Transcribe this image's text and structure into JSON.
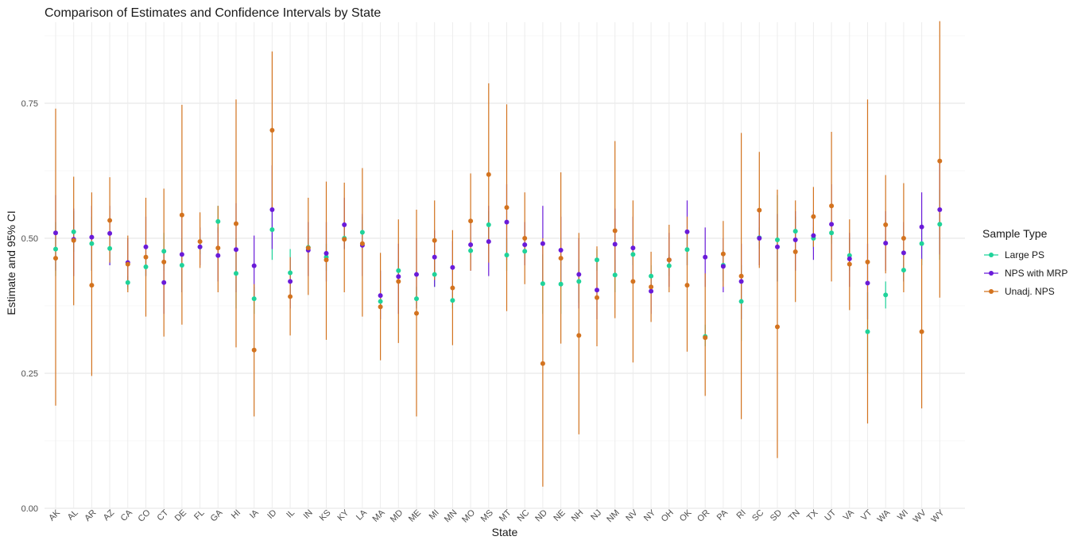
{
  "chart_data": {
    "type": "scatter",
    "title": "Comparison of Estimates and Confidence Intervals by State",
    "xlabel": "State",
    "ylabel": "Estimate and 95% CI",
    "ylim": [
      0,
      0.9
    ],
    "yticks": [
      0,
      0.25,
      0.5,
      0.75
    ],
    "ytick_labels": [
      "0.00",
      "0.25",
      "0.50",
      "0.75"
    ],
    "grid": true,
    "legend_position": "right",
    "legend_title": "Sample Type",
    "categories": [
      "AK",
      "AL",
      "AR",
      "AZ",
      "CA",
      "CO",
      "CT",
      "DE",
      "FL",
      "GA",
      "HI",
      "IA",
      "ID",
      "IL",
      "IN",
      "KS",
      "KY",
      "LA",
      "MA",
      "MD",
      "ME",
      "MI",
      "MN",
      "MO",
      "MS",
      "MT",
      "NC",
      "ND",
      "NE",
      "NH",
      "NJ",
      "NM",
      "NV",
      "NY",
      "OH",
      "OK",
      "OR",
      "PA",
      "RI",
      "SC",
      "SD",
      "TN",
      "TX",
      "UT",
      "VA",
      "VT",
      "WA",
      "WI",
      "WV",
      "WY"
    ],
    "series": [
      {
        "name": "Large PS",
        "color": "#1fd39a",
        "values": [
          0.48,
          0.512,
          0.49,
          0.481,
          0.418,
          0.447,
          0.476,
          0.45,
          0.484,
          0.531,
          0.435,
          0.388,
          0.516,
          0.436,
          0.483,
          0.465,
          0.5,
          0.511,
          0.383,
          0.44,
          0.388,
          0.433,
          0.385,
          0.477,
          0.525,
          0.469,
          0.476,
          0.416,
          0.415,
          0.42,
          0.46,
          0.432,
          0.47,
          0.43,
          0.449,
          0.479,
          0.318,
          0.45,
          0.383,
          0.501,
          0.497,
          0.513,
          0.5,
          0.51,
          0.468,
          0.327,
          0.395,
          0.441,
          0.49,
          0.526
        ],
        "lower": [
          0.43,
          0.475,
          0.44,
          0.45,
          0.405,
          0.43,
          0.44,
          0.4,
          0.47,
          0.51,
          0.37,
          0.36,
          0.46,
          0.39,
          0.47,
          0.44,
          0.48,
          0.48,
          0.37,
          0.42,
          0.37,
          0.41,
          0.37,
          0.46,
          0.5,
          0.44,
          0.46,
          0.36,
          0.36,
          0.38,
          0.44,
          0.4,
          0.45,
          0.41,
          0.43,
          0.45,
          0.3,
          0.42,
          0.31,
          0.48,
          0.42,
          0.49,
          0.48,
          0.49,
          0.44,
          0.25,
          0.37,
          0.42,
          0.45,
          0.46
        ],
        "upper": [
          0.53,
          0.55,
          0.54,
          0.51,
          0.43,
          0.46,
          0.51,
          0.5,
          0.5,
          0.56,
          0.5,
          0.41,
          0.56,
          0.48,
          0.5,
          0.49,
          0.52,
          0.54,
          0.39,
          0.46,
          0.41,
          0.46,
          0.4,
          0.49,
          0.55,
          0.5,
          0.49,
          0.47,
          0.47,
          0.46,
          0.48,
          0.46,
          0.49,
          0.45,
          0.47,
          0.51,
          0.34,
          0.48,
          0.45,
          0.52,
          0.58,
          0.54,
          0.52,
          0.53,
          0.5,
          0.4,
          0.42,
          0.46,
          0.53,
          0.59
        ]
      },
      {
        "name": "NPS with MRP",
        "color": "#6a1bd9",
        "values": [
          0.51,
          0.498,
          0.502,
          0.509,
          0.455,
          0.484,
          0.418,
          0.47,
          0.484,
          0.468,
          0.479,
          0.449,
          0.553,
          0.42,
          0.478,
          0.472,
          0.525,
          0.487,
          0.394,
          0.429,
          0.433,
          0.465,
          0.446,
          0.488,
          0.494,
          0.53,
          0.488,
          0.49,
          0.478,
          0.433,
          0.404,
          0.489,
          0.482,
          0.402,
          0.46,
          0.512,
          0.465,
          0.448,
          0.42,
          0.5,
          0.484,
          0.497,
          0.505,
          0.526,
          0.462,
          0.417,
          0.491,
          0.473,
          0.521,
          0.553
        ],
        "lower": [
          0.44,
          0.43,
          0.44,
          0.45,
          0.41,
          0.43,
          0.36,
          0.4,
          0.45,
          0.42,
          0.4,
          0.39,
          0.48,
          0.37,
          0.43,
          0.42,
          0.48,
          0.43,
          0.35,
          0.36,
          0.37,
          0.41,
          0.39,
          0.44,
          0.43,
          0.46,
          0.45,
          0.42,
          0.41,
          0.37,
          0.35,
          0.43,
          0.42,
          0.36,
          0.41,
          0.45,
          0.41,
          0.4,
          0.35,
          0.45,
          0.42,
          0.44,
          0.46,
          0.46,
          0.41,
          0.35,
          0.44,
          0.42,
          0.46,
          0.47
        ],
        "upper": [
          0.58,
          0.555,
          0.56,
          0.56,
          0.5,
          0.54,
          0.48,
          0.54,
          0.52,
          0.52,
          0.565,
          0.505,
          0.635,
          0.465,
          0.53,
          0.53,
          0.575,
          0.545,
          0.44,
          0.49,
          0.5,
          0.515,
          0.495,
          0.535,
          0.56,
          0.6,
          0.53,
          0.56,
          0.54,
          0.5,
          0.46,
          0.555,
          0.54,
          0.44,
          0.51,
          0.57,
          0.52,
          0.5,
          0.49,
          0.55,
          0.545,
          0.55,
          0.55,
          0.6,
          0.51,
          0.49,
          0.55,
          0.53,
          0.585,
          0.64
        ]
      },
      {
        "name": "Unadj. NPS",
        "color": "#d3731f",
        "values": [
          0.463,
          0.496,
          0.413,
          0.533,
          0.452,
          0.465,
          0.456,
          0.543,
          0.494,
          0.482,
          0.527,
          0.293,
          0.7,
          0.392,
          0.482,
          0.46,
          0.498,
          0.49,
          0.373,
          0.42,
          0.361,
          0.496,
          0.408,
          0.532,
          0.618,
          0.557,
          0.5,
          0.268,
          0.463,
          0.32,
          0.39,
          0.514,
          0.42,
          0.41,
          0.46,
          0.413,
          0.316,
          0.471,
          0.43,
          0.552,
          0.336,
          0.475,
          0.54,
          0.56,
          0.452,
          0.456,
          0.525,
          0.5,
          0.327,
          0.643
        ],
        "lower": [
          0.19,
          0.376,
          0.245,
          0.455,
          0.4,
          0.355,
          0.318,
          0.34,
          0.445,
          0.4,
          0.298,
          0.17,
          0.553,
          0.32,
          0.395,
          0.312,
          0.4,
          0.355,
          0.274,
          0.306,
          0.17,
          0.423,
          0.302,
          0.44,
          0.455,
          0.365,
          0.415,
          0.04,
          0.305,
          0.137,
          0.3,
          0.352,
          0.27,
          0.345,
          0.4,
          0.29,
          0.208,
          0.41,
          0.165,
          0.445,
          0.093,
          0.382,
          0.484,
          0.42,
          0.367,
          0.157,
          0.435,
          0.4,
          0.185,
          0.39
        ],
        "upper": [
          0.74,
          0.614,
          0.585,
          0.613,
          0.505,
          0.575,
          0.592,
          0.747,
          0.548,
          0.56,
          0.757,
          0.415,
          0.846,
          0.465,
          0.575,
          0.605,
          0.603,
          0.63,
          0.473,
          0.535,
          0.553,
          0.57,
          0.515,
          0.62,
          0.787,
          0.748,
          0.585,
          0.5,
          0.622,
          0.51,
          0.485,
          0.68,
          0.57,
          0.475,
          0.525,
          0.54,
          0.435,
          0.532,
          0.695,
          0.66,
          0.59,
          0.57,
          0.595,
          0.697,
          0.535,
          0.757,
          0.617,
          0.602,
          0.462,
          0.902
        ]
      }
    ]
  }
}
